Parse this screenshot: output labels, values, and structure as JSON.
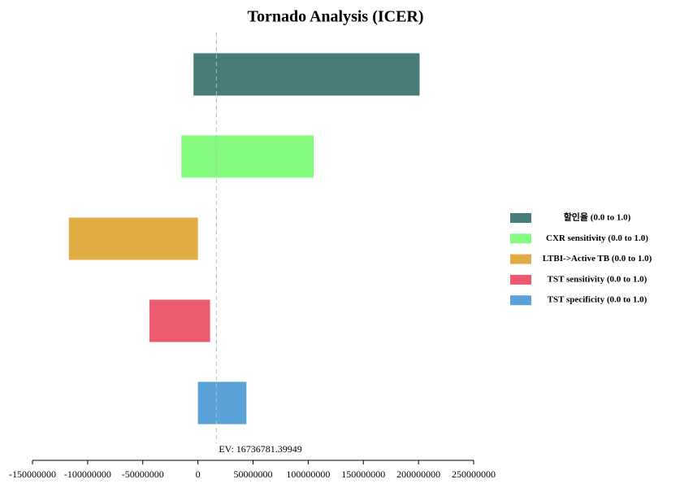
{
  "chart_data": {
    "type": "tornado",
    "title": "Tornado Analysis (ICER)",
    "series": [
      {
        "name": "할인율 (0.0 to 1.0)",
        "color": "#467d7a",
        "values": [
          -4000000,
          201000000
        ]
      },
      {
        "name": "CXR sensitivity (0.0 to 1.0)",
        "color": "#84fa7e",
        "values": [
          -15000000,
          105000000
        ]
      },
      {
        "name": "LTBI->Active TB (0.0 to 1.0)",
        "color": "#e0ac43",
        "values": [
          -117000000,
          0
        ]
      },
      {
        "name": "TST sensitivity (0.0 to 1.0)",
        "color": "#eb5a6e",
        "values": [
          -44000000,
          11000000
        ]
      },
      {
        "name": "TST specificity (0.0 to 1.0)",
        "color": "#5aa2d8",
        "values": [
          0,
          44000000
        ]
      }
    ],
    "ev": {
      "value": 16736781.39949,
      "label": "EV: 16736781.39949"
    },
    "xlim": [
      -150000000,
      250000000
    ],
    "xticks": [
      -150000000,
      -100000000,
      -50000000,
      0,
      50000000,
      100000000,
      150000000,
      200000000,
      250000000
    ]
  }
}
